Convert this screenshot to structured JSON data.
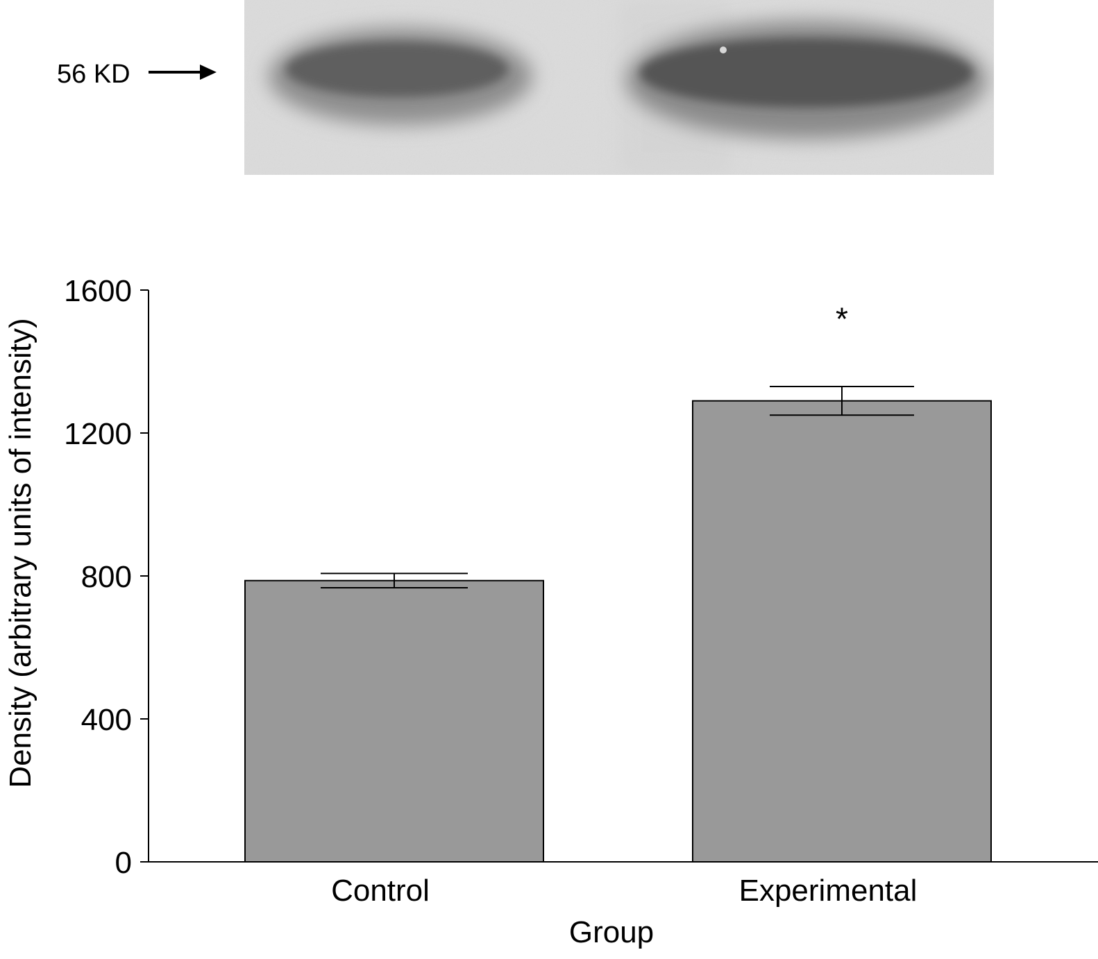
{
  "blot": {
    "marker_label": "56 KD"
  },
  "chart_data": {
    "type": "bar",
    "categories": [
      "Control",
      "Experimental"
    ],
    "values": [
      787,
      1290
    ],
    "errors": [
      20,
      40
    ],
    "significance": [
      "",
      "*"
    ],
    "xlabel": "Group",
    "ylabel": "Density (arbitrary units of intensity)",
    "ylim": [
      0,
      1600
    ],
    "yticks": [
      0,
      400,
      800,
      1200,
      1600
    ],
    "bar_color": "#999999",
    "grid": false
  }
}
